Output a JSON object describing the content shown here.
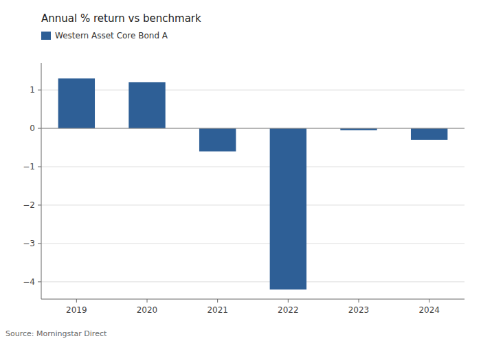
{
  "chart_data": {
    "type": "bar",
    "title": "Annual % return vs benchmark",
    "categories": [
      "2019",
      "2020",
      "2021",
      "2022",
      "2023",
      "2024"
    ],
    "series": [
      {
        "name": "Western Asset Core Bond A",
        "color": "#2e5f96",
        "values": [
          1.3,
          1.2,
          -0.6,
          -4.2,
          -0.05,
          -0.3
        ]
      }
    ],
    "ylim": [
      -4.45,
      1.7
    ],
    "yticks": [
      {
        "value": -4,
        "label": "−4"
      },
      {
        "value": -3,
        "label": "−3"
      },
      {
        "value": -2,
        "label": "−2"
      },
      {
        "value": -1,
        "label": "−1"
      },
      0,
      1
    ],
    "grid": true,
    "legend": "upper left",
    "source": "Source: Morningstar Direct"
  }
}
